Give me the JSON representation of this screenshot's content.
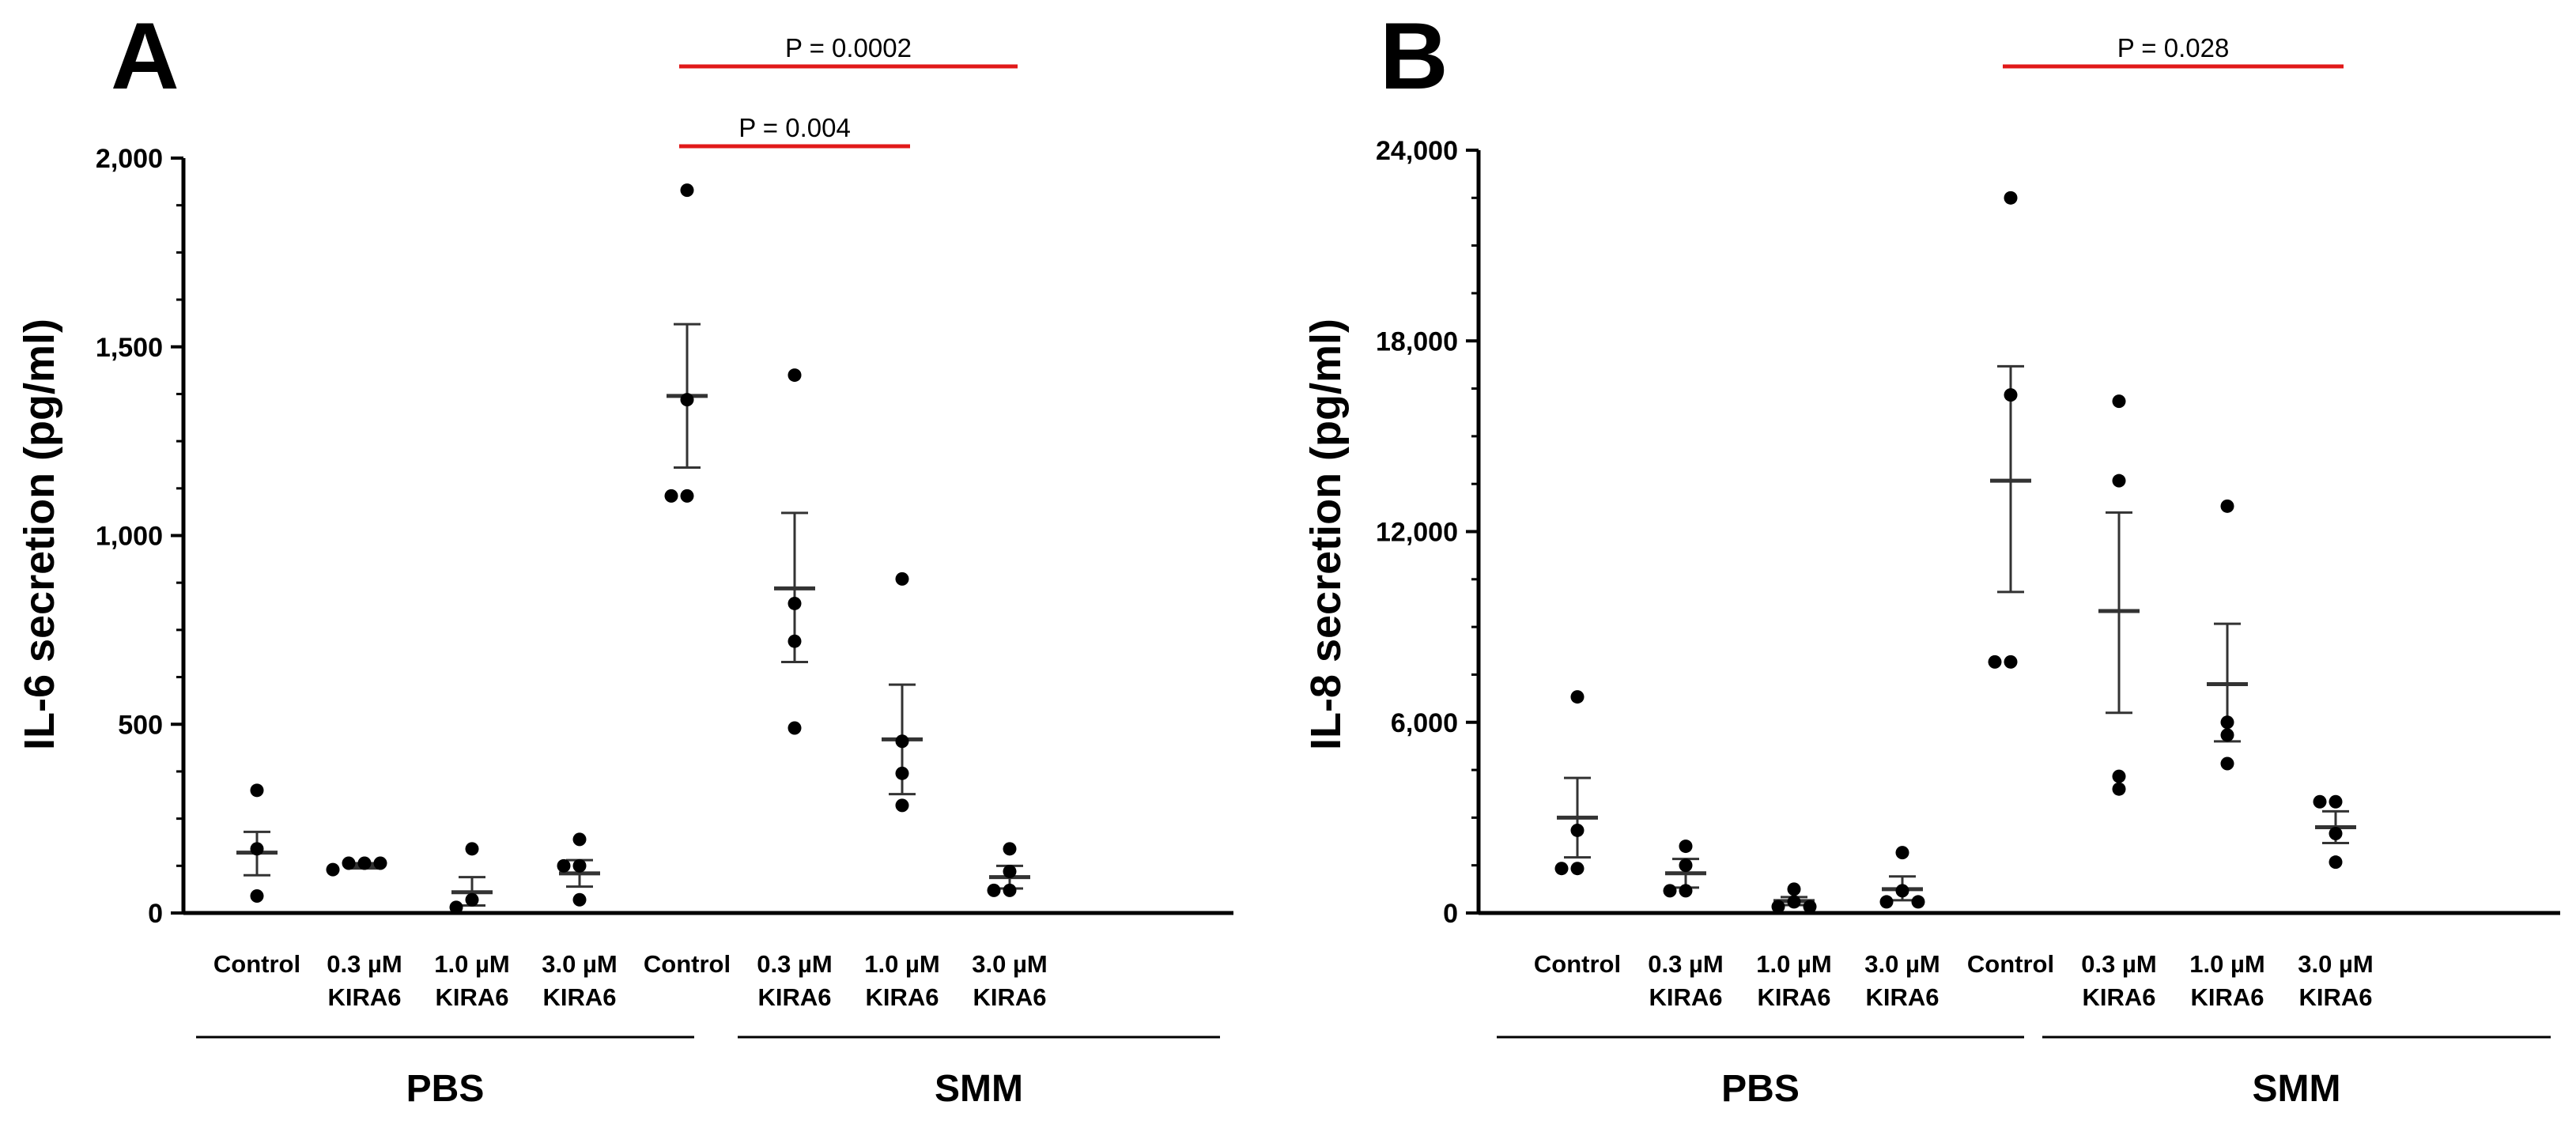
{
  "chart_data": [
    {
      "panel": "A",
      "type": "scatter",
      "ylabel": "IL-6 secretion (pg/ml)",
      "ylim": [
        0,
        2000
      ],
      "yticks": [
        0,
        500,
        1000,
        1500,
        2000
      ],
      "ytick_labels": [
        "0",
        "500",
        "1,000",
        "1,500",
        "2,000"
      ],
      "categories": [
        [
          "Control"
        ],
        [
          "0.3 µM",
          "KIRA6"
        ],
        [
          "1.0 µM",
          "KIRA6"
        ],
        [
          "3.0 µM",
          "KIRA6"
        ],
        [
          "Control"
        ],
        [
          "0.3 µM",
          "KIRA6"
        ],
        [
          "1.0 µM",
          "KIRA6"
        ],
        [
          "3.0 µM",
          "KIRA6"
        ]
      ],
      "groups": [
        {
          "label": "PBS",
          "from": 0,
          "to": 3
        },
        {
          "label": "SMM",
          "from": 4,
          "to": 7
        }
      ],
      "series": [
        {
          "points": [
            325,
            170,
            45
          ],
          "mean": 160,
          "sem_low": 100,
          "sem_high": 215
        },
        {
          "points": [
            132,
            132,
            132,
            115
          ],
          "mean": 125,
          "sem_low": 118,
          "sem_high": 132
        },
        {
          "points": [
            170,
            35,
            15
          ],
          "mean": 55,
          "sem_low": 20,
          "sem_high": 95
        },
        {
          "points": [
            195,
            125,
            125,
            35
          ],
          "mean": 105,
          "sem_low": 70,
          "sem_high": 140
        },
        {
          "points": [
            1915,
            1360,
            1105,
            1105
          ],
          "mean": 1370,
          "sem_low": 1180,
          "sem_high": 1560
        },
        {
          "points": [
            1425,
            820,
            720,
            490
          ],
          "mean": 860,
          "sem_low": 665,
          "sem_high": 1060
        },
        {
          "points": [
            885,
            455,
            370,
            285
          ],
          "mean": 460,
          "sem_low": 315,
          "sem_high": 605
        },
        {
          "points": [
            170,
            110,
            60,
            60
          ],
          "mean": 95,
          "sem_low": 65,
          "sem_high": 125
        }
      ],
      "comparisons": [
        {
          "label": "P = 0.0002",
          "from": 4,
          "to": 7,
          "level": 0
        },
        {
          "label": "P = 0.004",
          "from": 4,
          "to": 6,
          "level": 1
        }
      ]
    },
    {
      "panel": "B",
      "type": "scatter",
      "ylabel": "IL-8 secretion (pg/ml)",
      "ylim": [
        0,
        24000
      ],
      "yticks": [
        0,
        6000,
        12000,
        18000,
        24000
      ],
      "ytick_labels": [
        "0",
        "6,000",
        "12,000",
        "18,000",
        "24,000"
      ],
      "categories": [
        [
          "Control"
        ],
        [
          "0.3 µM",
          "KIRA6"
        ],
        [
          "1.0 µM",
          "KIRA6"
        ],
        [
          "3.0 µM",
          "KIRA6"
        ],
        [
          "Control"
        ],
        [
          "0.3 µM",
          "KIRA6"
        ],
        [
          "1.0 µM",
          "KIRA6"
        ],
        [
          "3.0 µM",
          "KIRA6"
        ]
      ],
      "groups": [
        {
          "label": "PBS",
          "from": 0,
          "to": 3
        },
        {
          "label": "SMM",
          "from": 4,
          "to": 7
        }
      ],
      "series": [
        {
          "points": [
            6800,
            2600,
            1400,
            1400
          ],
          "mean": 3000,
          "sem_low": 1750,
          "sem_high": 4250
        },
        {
          "points": [
            2100,
            1500,
            700,
            700
          ],
          "mean": 1250,
          "sem_low": 800,
          "sem_high": 1700
        },
        {
          "points": [
            750,
            350,
            200,
            200
          ],
          "mean": 375,
          "sem_low": 250,
          "sem_high": 500
        },
        {
          "points": [
            1900,
            700,
            350,
            350
          ],
          "mean": 750,
          "sem_low": 400,
          "sem_high": 1150
        },
        {
          "points": [
            22500,
            16300,
            7900,
            7900
          ],
          "mean": 13600,
          "sem_low": 10100,
          "sem_high": 17200
        },
        {
          "points": [
            16100,
            13600,
            4300,
            3900
          ],
          "mean": 9500,
          "sem_low": 6300,
          "sem_high": 12600
        },
        {
          "points": [
            12800,
            6000,
            5600,
            4700
          ],
          "mean": 7200,
          "sem_low": 5400,
          "sem_high": 9100
        },
        {
          "points": [
            3500,
            3500,
            2500,
            1600
          ],
          "mean": 2700,
          "sem_low": 2200,
          "sem_high": 3200
        }
      ],
      "comparisons": [
        {
          "label": "P = 0.028",
          "from": 4,
          "to": 7,
          "level": 0
        }
      ]
    }
  ]
}
